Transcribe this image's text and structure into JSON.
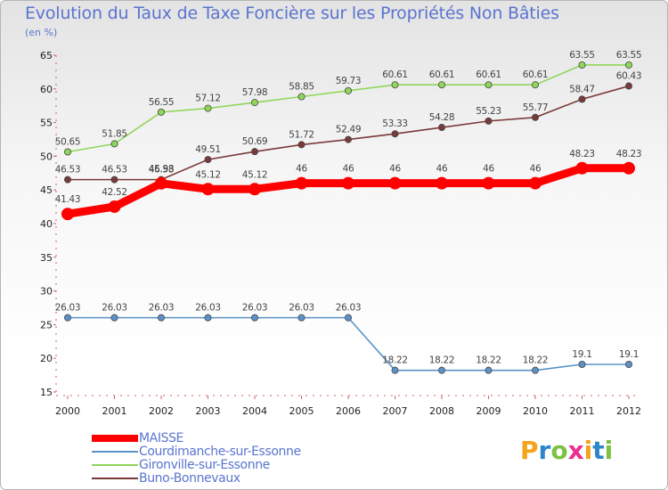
{
  "title": "Evolution du Taux de Taxe Foncière sur les Propriétés Non Bâties",
  "unit_label": "(en %)",
  "brand": {
    "text": "Proxiti",
    "letter_colors": [
      "#f5a31a",
      "#2e86c8",
      "#7cc242",
      "#e8308c",
      "#f5a31a",
      "#2e86c8",
      "#7cc242"
    ]
  },
  "chart_data": {
    "type": "line",
    "x": [
      "2000",
      "2001",
      "2002",
      "2003",
      "2004",
      "2005",
      "2006",
      "2007",
      "2008",
      "2009",
      "2010",
      "2011",
      "2012"
    ],
    "ylim": [
      15,
      65
    ],
    "yticks": [
      15,
      20,
      25,
      30,
      35,
      40,
      45,
      50,
      55,
      60,
      65
    ],
    "grid": false,
    "legend_position": "bottom-left",
    "series": [
      {
        "name": "MAISSE",
        "color": "#ff0000",
        "values": [
          41.43,
          42.52,
          45.98,
          45.12,
          45.12,
          46,
          46,
          46,
          46,
          46,
          46,
          48.23,
          48.23
        ],
        "labels": [
          "41.43",
          "42.52",
          "45.98",
          "45.12",
          "45.12",
          "46",
          "46",
          "46",
          "46",
          "46",
          "46",
          "48.23",
          "48.23"
        ]
      },
      {
        "name": "Courdimanche-sur-Essonne",
        "color": "#5b92c8",
        "values": [
          26.03,
          26.03,
          26.03,
          26.03,
          26.03,
          26.03,
          26.03,
          18.22,
          18.22,
          18.22,
          18.22,
          19.1,
          19.1
        ],
        "labels": [
          "26.03",
          "26.03",
          "26.03",
          "26.03",
          "26.03",
          "26.03",
          "26.03",
          "18.22",
          "18.22",
          "18.22",
          "18.22",
          "19.1",
          "19.1"
        ]
      },
      {
        "name": "Gironville-sur-Essonne",
        "color": "#8fd65a",
        "values": [
          50.65,
          51.85,
          56.55,
          57.12,
          57.98,
          58.85,
          59.73,
          60.61,
          60.61,
          60.61,
          60.61,
          63.55,
          63.55
        ],
        "labels": [
          "50.65",
          "51.85",
          "56.55",
          "57.12",
          "57.98",
          "58.85",
          "59.73",
          "60.61",
          "60.61",
          "60.61",
          "60.61",
          "63.55",
          "63.55"
        ]
      },
      {
        "name": "Buno-Bonnevaux",
        "color": "#7a3a3a",
        "values": [
          46.53,
          46.53,
          46.53,
          49.51,
          50.69,
          51.72,
          52.49,
          53.33,
          54.28,
          55.23,
          55.77,
          58.47,
          60.43
        ],
        "labels": [
          "46.53",
          "46.53",
          "46.53",
          "49.51",
          "50.69",
          "51.72",
          "52.49",
          "53.33",
          "54.28",
          "55.23",
          "55.77",
          "58.47",
          "60.43"
        ]
      }
    ]
  }
}
